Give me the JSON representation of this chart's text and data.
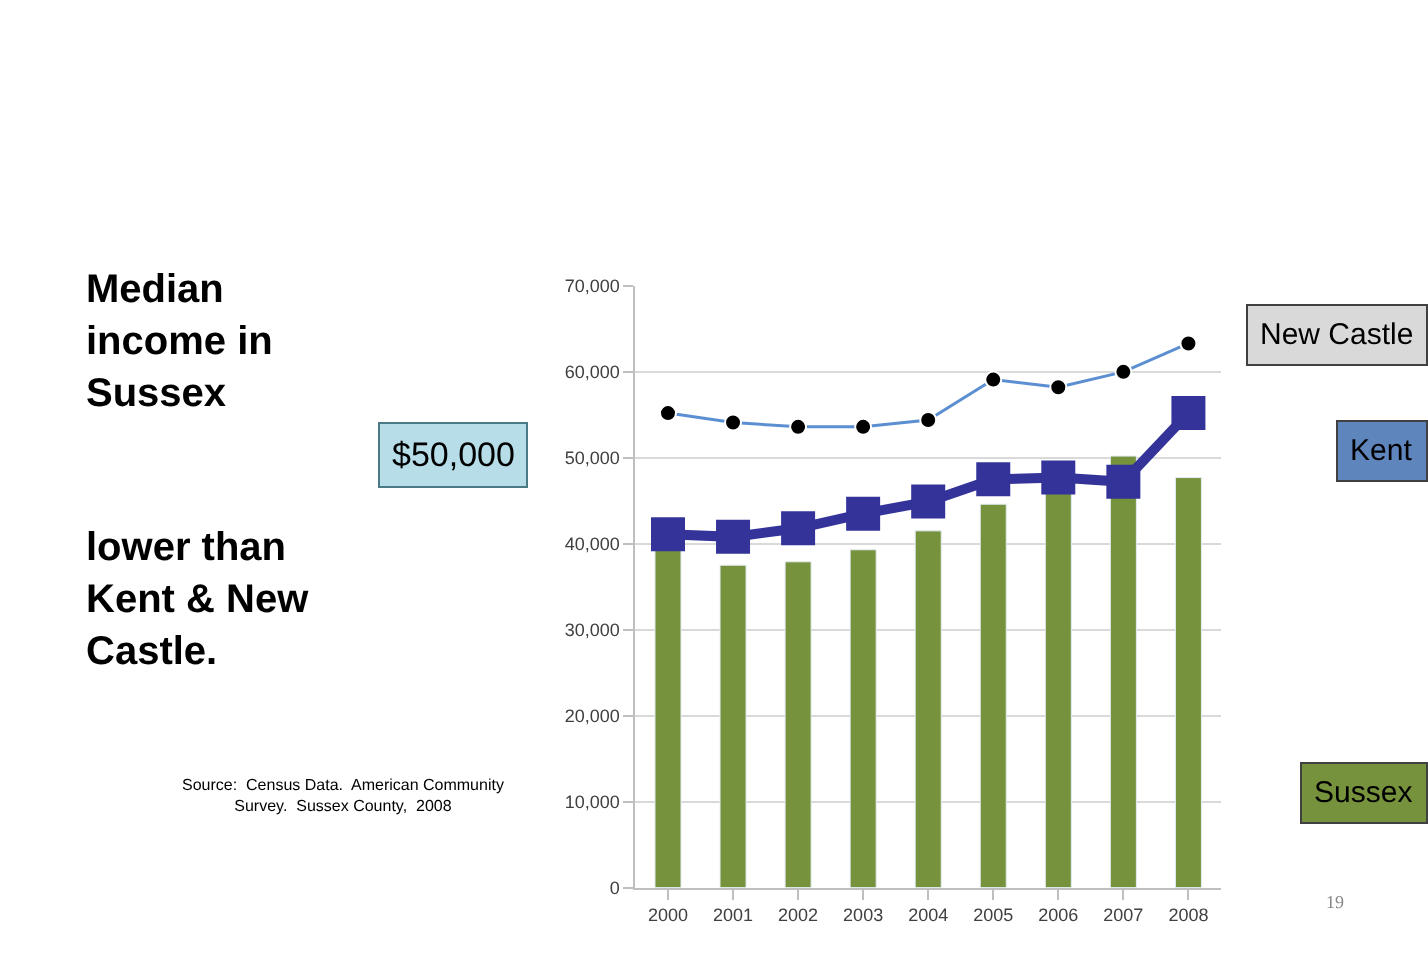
{
  "chart_data": {
    "type": "bar",
    "title": "Median income in Sussex",
    "subtitle": "lower than Kent & New Castle.",
    "categories": [
      "2000",
      "2001",
      "2002",
      "2003",
      "2004",
      "2005",
      "2006",
      "2007",
      "2008"
    ],
    "series": [
      {
        "name": "Sussex",
        "color": "#76923c",
        "values": [
          39500,
          37500,
          37900,
          39300,
          41500,
          44600,
          46500,
          50200,
          47700
        ]
      },
      {
        "name": "Kent",
        "type": "line",
        "color": "#333399",
        "marker": "square",
        "values": [
          41100,
          40800,
          41800,
          43500,
          44900,
          47500,
          47700,
          47200,
          55200
        ]
      },
      {
        "name": "New Castle",
        "type": "line",
        "color": "#5b8fd1",
        "marker": "circle",
        "values": [
          55200,
          54100,
          53600,
          53600,
          54400,
          59100,
          58200,
          60000,
          63300
        ]
      }
    ],
    "ylim": [
      0,
      70000
    ],
    "yticks": [
      {
        "value": 0,
        "label": "0"
      },
      {
        "value": 10000,
        "label": "10,000"
      },
      {
        "value": 20000,
        "label": "20,000"
      },
      {
        "value": 30000,
        "label": "30,000"
      },
      {
        "value": 40000,
        "label": "40,000"
      },
      {
        "value": 50000,
        "label": "50,000"
      },
      {
        "value": 60000,
        "label": "60,000"
      },
      {
        "value": 70000,
        "label": "70,000"
      }
    ],
    "grid": "y",
    "legend": false,
    "annotations": [
      "$50,000",
      "Source:  Census Data.  American Community Survey.  Sussex County,  2008",
      "19"
    ]
  }
}
